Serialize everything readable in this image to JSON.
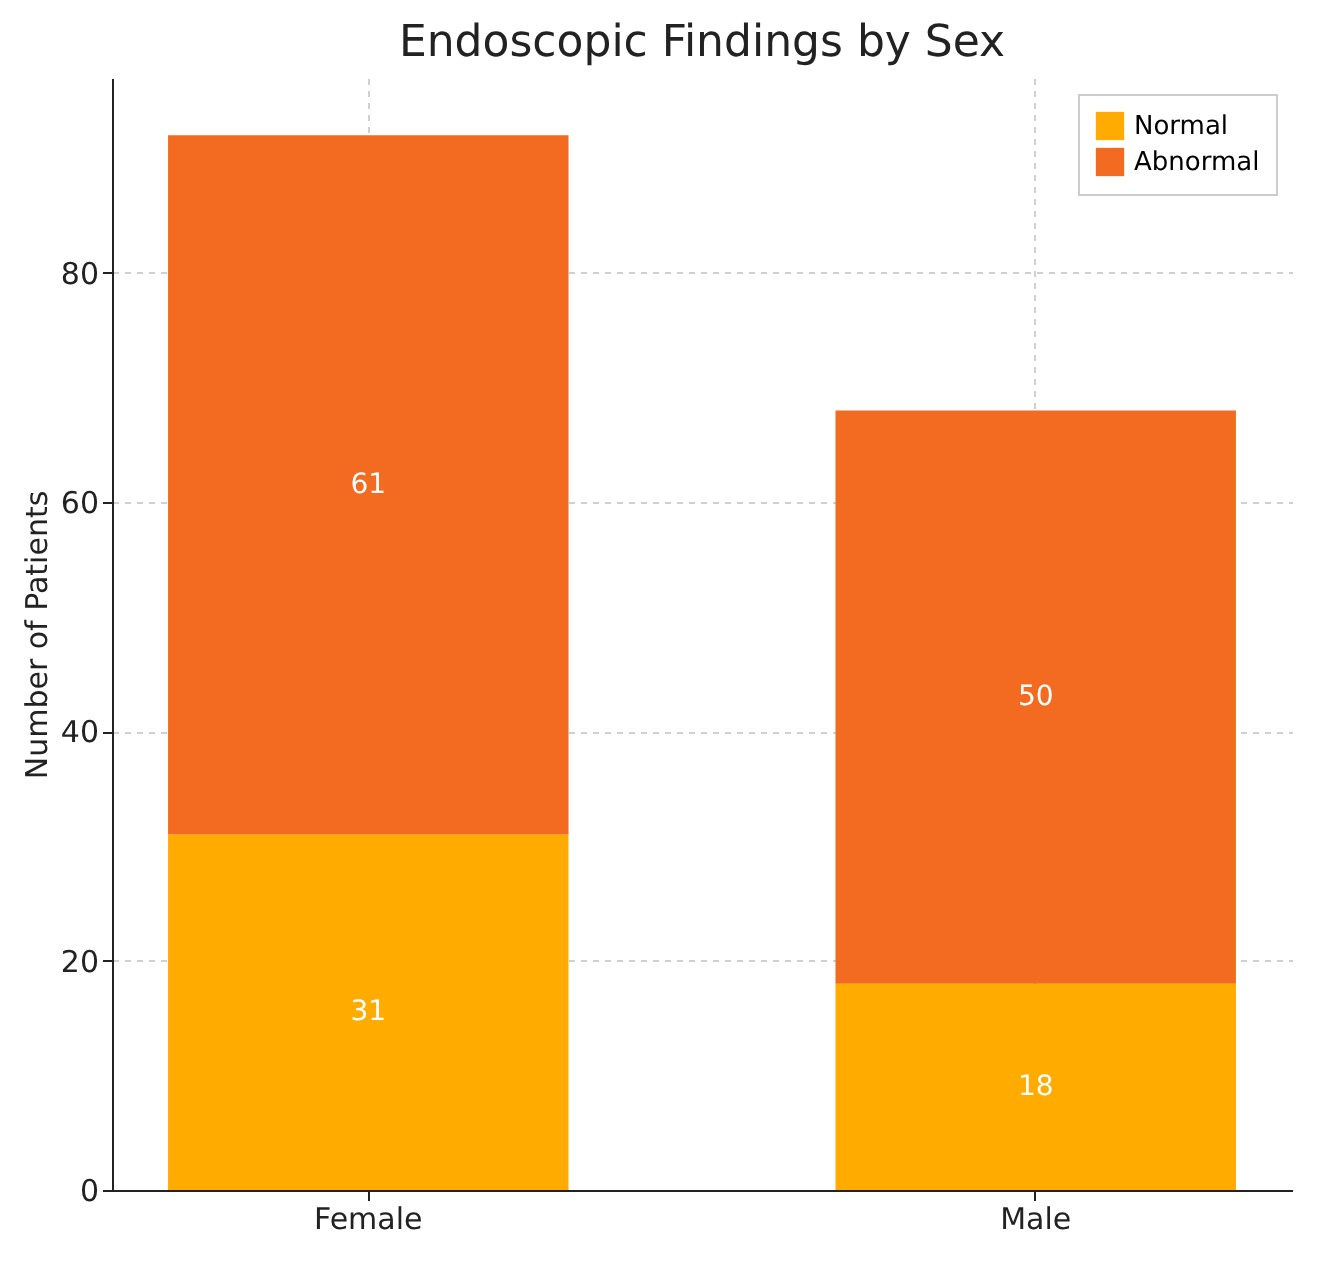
{
  "chart_data": {
    "type": "bar",
    "title": "Endoscopic Findings by Sex",
    "ylabel": "Number of Patients",
    "categories": [
      "Female",
      "Male"
    ],
    "series": [
      {
        "name": "Normal",
        "color": "#ffab00",
        "values": [
          31,
          18
        ]
      },
      {
        "name": "Abnormal",
        "color": "#f26b21",
        "values": [
          61,
          50
        ]
      }
    ],
    "stacked": true,
    "ylim": [
      0,
      97
    ],
    "yticks": [
      0,
      20,
      40,
      60,
      80
    ],
    "grid": true,
    "legend": "top right",
    "data_labels": true
  }
}
